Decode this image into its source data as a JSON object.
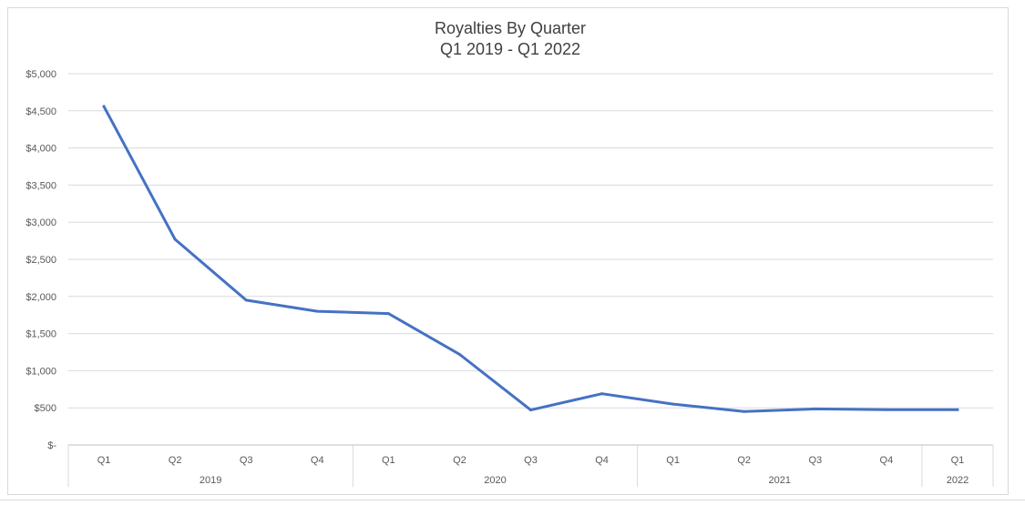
{
  "chart_data": {
    "type": "line",
    "title": "Royalties By Quarter",
    "subtitle": "Q1 2019 - Q1 2022",
    "xlabel": "",
    "ylabel": "",
    "ylim": [
      0,
      5000
    ],
    "yticks": [
      0,
      500,
      1000,
      1500,
      2000,
      2500,
      3000,
      3500,
      4000,
      4500,
      5000
    ],
    "ytick_labels": [
      "$-",
      "$500",
      "$1,000",
      "$1,500",
      "$2,000",
      "$2,500",
      "$3,000",
      "$3,500",
      "$4,000",
      "$4,500",
      "$5,000"
    ],
    "grid": true,
    "legend": "none",
    "line_color": "#4472c4",
    "categories": [
      "Q1",
      "Q2",
      "Q3",
      "Q4",
      "Q1",
      "Q2",
      "Q3",
      "Q4",
      "Q1",
      "Q2",
      "Q3",
      "Q4",
      "Q1"
    ],
    "year_groups": [
      {
        "label": "2019",
        "count": 4
      },
      {
        "label": "2020",
        "count": 4
      },
      {
        "label": "2021",
        "count": 4
      },
      {
        "label": "2022",
        "count": 1
      }
    ],
    "series": [
      {
        "values": [
          4560,
          2770,
          1950,
          1800,
          1770,
          1220,
          470,
          690,
          550,
          450,
          485,
          475,
          475
        ]
      }
    ]
  }
}
